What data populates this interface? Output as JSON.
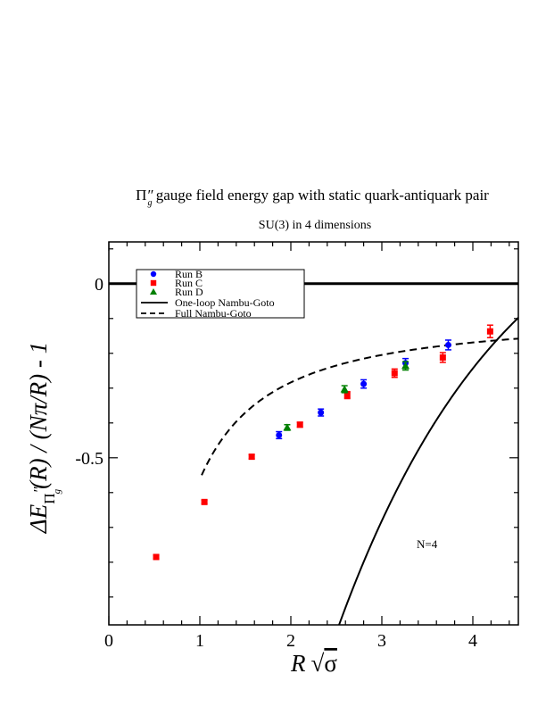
{
  "chart_data": {
    "type": "scatter",
    "title_symbol": "Π",
    "title_primes": "″",
    "title_sub": "g",
    "title_rest": "  gauge field energy gap with static quark-antiquark pair",
    "subtitle": "SU(3) in 4 dimensions",
    "ylabel_main": "ΔE",
    "ylabel_sub_symbol": "Π",
    "ylabel_sub_primes": "″",
    "ylabel_sub_g": "g",
    "ylabel_rest": "(R) / (Nπ/R) - 1",
    "xlabel_R": "R",
    "xlabel_sqrt": "√",
    "xlabel_sigma": "σ",
    "annotation": "N=4",
    "xlim": [
      0,
      4.5
    ],
    "ylim": [
      -0.98,
      0.12
    ],
    "x_ticks": [
      0,
      1,
      2,
      3,
      4
    ],
    "x_tick_labels": [
      "0",
      "1",
      "2",
      "3",
      "4"
    ],
    "x_minor_step": 0.2,
    "y_ticks": [
      0,
      -0.5
    ],
    "y_tick_labels": [
      "0",
      "-0.5"
    ],
    "y_minor_step": 0.1,
    "reference_line_y": 0,
    "legend_position": "top-left",
    "series": [
      {
        "name": "Run B",
        "marker": "circle",
        "color": "#0000ff",
        "points": [
          {
            "x": 1.87,
            "y": -0.435,
            "err": 0.01
          },
          {
            "x": 2.33,
            "y": -0.37,
            "err": 0.01
          },
          {
            "x": 2.8,
            "y": -0.288,
            "err": 0.012
          },
          {
            "x": 3.26,
            "y": -0.228,
            "err": 0.013
          },
          {
            "x": 3.73,
            "y": -0.176,
            "err": 0.014
          }
        ]
      },
      {
        "name": "Run C",
        "marker": "square",
        "color": "#ff0000",
        "points": [
          {
            "x": 0.52,
            "y": -0.785,
            "err": 0.005
          },
          {
            "x": 1.05,
            "y": -0.627,
            "err": 0.005
          },
          {
            "x": 1.57,
            "y": -0.497,
            "err": 0.006
          },
          {
            "x": 2.1,
            "y": -0.405,
            "err": 0.007
          },
          {
            "x": 2.62,
            "y": -0.32,
            "err": 0.01
          },
          {
            "x": 3.14,
            "y": -0.257,
            "err": 0.012
          },
          {
            "x": 3.67,
            "y": -0.212,
            "err": 0.014
          },
          {
            "x": 4.19,
            "y": -0.137,
            "err": 0.018
          }
        ]
      },
      {
        "name": "Run D",
        "marker": "triangle",
        "color": "#008000",
        "points": [
          {
            "x": 1.96,
            "y": -0.413,
            "err": 0.008
          },
          {
            "x": 2.59,
            "y": -0.303,
            "err": 0.01
          },
          {
            "x": 3.26,
            "y": -0.236,
            "err": 0.012
          }
        ]
      }
    ],
    "lines": [
      {
        "name": "One-loop Nambu-Goto",
        "style": "solid",
        "color": "#000000"
      },
      {
        "name": "Full Nambu-Goto",
        "style": "dashed",
        "color": "#000000"
      }
    ]
  }
}
